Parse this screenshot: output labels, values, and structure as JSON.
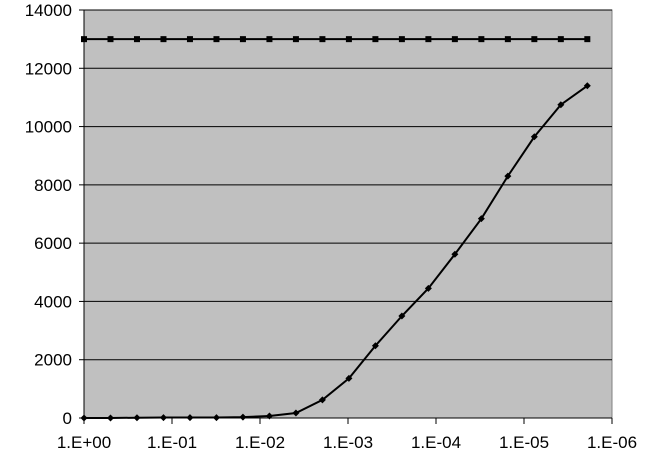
{
  "chart_data": {
    "type": "line",
    "title": "",
    "xlabel": "",
    "ylabel": "",
    "x_scale": "log",
    "x_reversed": true,
    "x_ticks": [
      1,
      0.1,
      0.01,
      0.001,
      0.0001,
      1e-05,
      1e-06
    ],
    "x_tick_labels": [
      "1.E+00",
      "1.E-01",
      "1.E-02",
      "1.E-03",
      "1.E-04",
      "1.E-05",
      "1.E-06"
    ],
    "xlim": [
      1,
      1e-06
    ],
    "ylim": [
      0,
      14000
    ],
    "y_ticks": [
      0,
      2000,
      4000,
      6000,
      8000,
      10000,
      12000,
      14000
    ],
    "y_tick_labels": [
      "0",
      "2000",
      "4000",
      "6000",
      "8000",
      "10000",
      "12000",
      "14000"
    ],
    "grid": "horizontal",
    "legend": "none",
    "colors": {
      "plot_background": "#c0c0c0",
      "gridline": "#000000",
      "series": "#000000",
      "page_background": "#ffffff"
    },
    "series": [
      {
        "marker": "square",
        "points": [
          [
            1,
            13000
          ],
          [
            0.5,
            13000
          ],
          [
            0.25,
            13000
          ],
          [
            0.125,
            13000
          ],
          [
            0.0625,
            13000
          ],
          [
            0.03125,
            13000
          ],
          [
            0.015625,
            13000
          ],
          [
            0.0078125,
            13000
          ],
          [
            0.00390625,
            13000
          ],
          [
            0.001953125,
            13000
          ],
          [
            0.0009765625,
            13000
          ],
          [
            0.00048828125,
            13000
          ],
          [
            0.000244140625,
            13000
          ],
          [
            0.0001220703125,
            13000
          ],
          [
            6.103515625e-05,
            13000
          ],
          [
            3.0517578125e-05,
            13000
          ],
          [
            1.52587890625e-05,
            13000
          ],
          [
            7.62939453125e-06,
            13000
          ],
          [
            3.814697265625e-06,
            13000
          ],
          [
            1.9073486328125e-06,
            13000
          ]
        ]
      },
      {
        "marker": "diamond",
        "points": [
          [
            1,
            0
          ],
          [
            0.5,
            0
          ],
          [
            0.25,
            10
          ],
          [
            0.125,
            15
          ],
          [
            0.0625,
            15
          ],
          [
            0.03125,
            15
          ],
          [
            0.015625,
            30
          ],
          [
            0.0078125,
            70
          ],
          [
            0.00390625,
            170
          ],
          [
            0.001953125,
            620
          ],
          [
            0.0009765625,
            1360
          ],
          [
            0.00048828125,
            2480
          ],
          [
            0.000244140625,
            3500
          ],
          [
            0.0001220703125,
            4450
          ],
          [
            6.103515625e-05,
            5620
          ],
          [
            3.0517578125e-05,
            6840
          ],
          [
            1.52587890625e-05,
            8300
          ],
          [
            7.62939453125e-06,
            9650
          ],
          [
            3.814697265625e-06,
            10750
          ],
          [
            1.9073486328125e-06,
            11400
          ]
        ]
      }
    ]
  }
}
